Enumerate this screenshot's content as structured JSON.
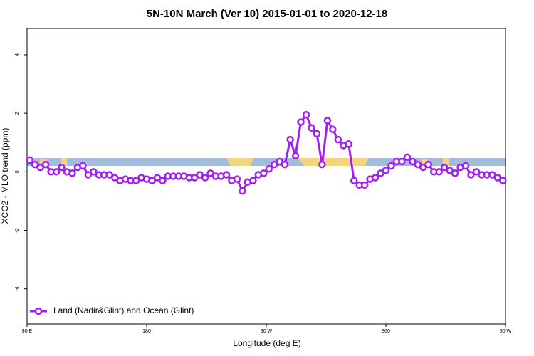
{
  "chart_data": {
    "type": "line",
    "title": "5N-10N March (Ver 10)   2015-01-01 to 2020-12-18",
    "x_label": "Longitude (deg E)",
    "y_label": "XCO2 - MLO trend (ppm)",
    "xlim": [
      90,
      450
    ],
    "xticks": [
      {
        "value": 90,
        "label": "90 E"
      },
      180,
      {
        "value": 270,
        "label": "90 W"
      },
      360,
      {
        "value": 450,
        "label": "90 W"
      }
    ],
    "ylim": [
      -5.2,
      4.9
    ],
    "yticks": [
      -4,
      -2,
      0,
      2,
      4
    ],
    "legend": "bottomleft",
    "x": [
      92,
      96,
      100,
      104,
      108,
      112,
      116,
      120,
      124,
      128,
      132,
      136,
      140,
      144,
      148,
      152,
      156,
      160,
      164,
      168,
      172,
      176,
      180,
      184,
      188,
      192,
      196,
      200,
      204,
      208,
      212,
      216,
      220,
      224,
      228,
      232,
      236,
      240,
      244,
      248,
      252,
      256,
      260,
      264,
      268,
      272,
      276,
      280,
      284,
      288,
      292,
      296,
      300,
      304,
      308,
      312,
      316,
      320,
      324,
      328,
      332,
      336,
      340,
      344,
      348,
      352,
      356,
      360,
      364,
      368,
      372,
      376,
      380,
      384,
      388,
      392,
      396,
      400,
      404,
      408,
      412,
      416,
      420,
      424,
      428,
      432,
      436,
      440,
      444,
      448
    ],
    "series": [
      {
        "name": "Land (Nadir&Glint) and Ocean (Glint)",
        "color": "#a020f0",
        "values": [
          0.4,
          0.25,
          0.15,
          0.25,
          0,
          0,
          0.15,
          0,
          -0.05,
          0.15,
          0.2,
          -0.1,
          0,
          -0.1,
          -0.1,
          -0.1,
          -0.2,
          -0.3,
          -0.25,
          -0.3,
          -0.3,
          -0.2,
          -0.25,
          -0.3,
          -0.2,
          -0.3,
          -0.15,
          -0.15,
          -0.15,
          -0.15,
          -0.2,
          -0.2,
          -0.1,
          -0.2,
          -0.05,
          -0.15,
          -0.15,
          -0.1,
          -0.3,
          -0.25,
          -0.65,
          -0.35,
          -0.3,
          -0.1,
          -0.05,
          0.1,
          0.25,
          0.35,
          0.25,
          1.1,
          0.55,
          1.7,
          1.95,
          1.5,
          1.3,
          0.25,
          1.75,
          1.45,
          1.1,
          0.9,
          0.95,
          -0.3,
          -0.45,
          -0.45,
          -0.25,
          -0.2,
          -0.05,
          0.05,
          0.2,
          0.35,
          0.35,
          0.5,
          0.35,
          0.25,
          0.15,
          0.25,
          0,
          0,
          0.15,
          0.05,
          -0.05,
          0.15,
          0.2,
          -0.1,
          0,
          -0.1,
          -0.1,
          -0.1,
          -0.2,
          -0.3
        ]
      }
    ]
  }
}
